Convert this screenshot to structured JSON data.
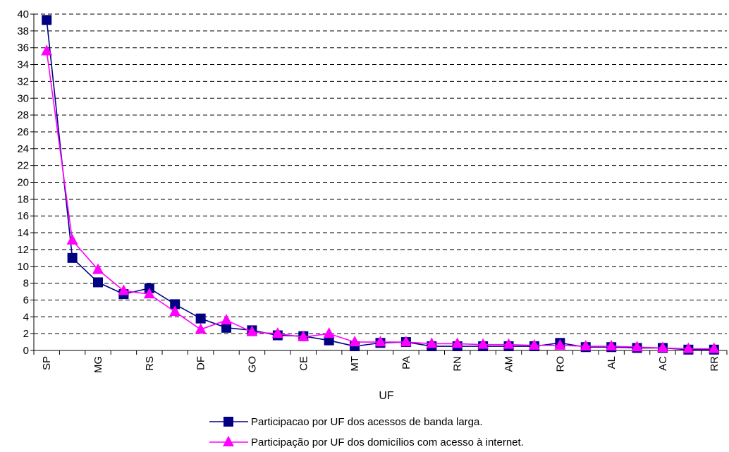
{
  "chart_data": {
    "type": "line",
    "title": "",
    "xlabel": "UF",
    "ylabel": "",
    "ylim": [
      0,
      40
    ],
    "y_ticks": [
      0,
      2,
      4,
      6,
      8,
      10,
      12,
      14,
      16,
      18,
      20,
      22,
      24,
      26,
      28,
      30,
      32,
      34,
      36,
      38,
      40
    ],
    "grid": "horizontal-dashed",
    "legend_position": "bottom",
    "categories": [
      "SP",
      "",
      "MG",
      "",
      "RS",
      "",
      "DF",
      "",
      "GO",
      "",
      "CE",
      "",
      "MT",
      "",
      "PA",
      "",
      "RN",
      "",
      "AM",
      "",
      "RO",
      "",
      "AL",
      "",
      "AC",
      "",
      "RR"
    ],
    "series": [
      {
        "name": "Participacao por UF dos acessos de banda larga.",
        "color": "#000080",
        "marker": "square",
        "values": [
          39.3,
          11.0,
          8.1,
          6.7,
          7.4,
          5.5,
          3.8,
          2.7,
          2.4,
          1.8,
          1.7,
          1.2,
          0.5,
          0.9,
          1.0,
          0.5,
          0.5,
          0.5,
          0.5,
          0.5,
          0.9,
          0.4,
          0.4,
          0.3,
          0.3,
          0.1,
          0.1
        ]
      },
      {
        "name": "Participação por UF dos domicílios com acesso à internet.",
        "color": "#ff00ff",
        "marker": "triangle",
        "values": [
          35.6,
          13.1,
          9.6,
          7.1,
          6.7,
          4.6,
          2.5,
          3.6,
          2.2,
          2.0,
          1.6,
          2.0,
          1.0,
          1.0,
          1.0,
          0.8,
          0.8,
          0.7,
          0.7,
          0.6,
          0.6,
          0.5,
          0.5,
          0.4,
          0.3,
          0.2,
          0.2
        ]
      }
    ]
  }
}
